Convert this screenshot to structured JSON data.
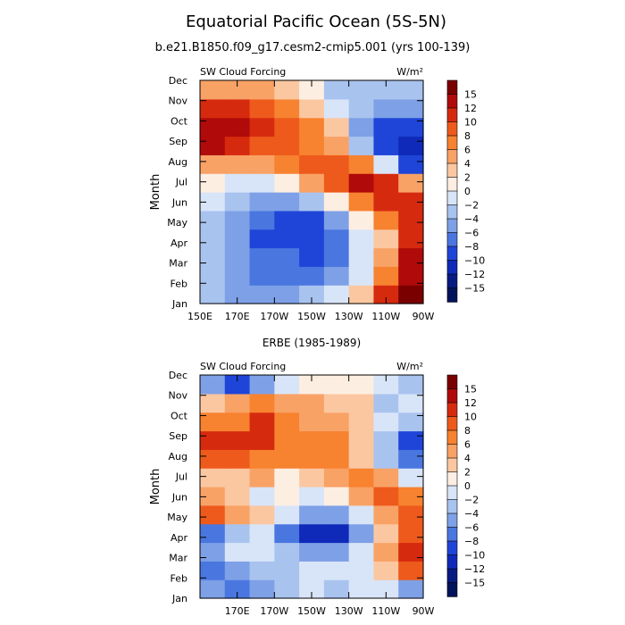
{
  "page": {
    "title": "Equatorial Pacific Ocean (5S-5N)",
    "subtitle": "b.e21.B1850.f09_g17.cesm2-cmip5.001 (yrs 100-139)"
  },
  "colorbar": {
    "labels": [
      "15",
      "12",
      "10",
      "8",
      "6",
      "4",
      "2",
      "0",
      "−2",
      "−4",
      "−6",
      "−8",
      "−10",
      "−12",
      "−15"
    ],
    "colors": [
      "#7a0000",
      "#b00a0a",
      "#d62a0f",
      "#ee5a1c",
      "#f7822f",
      "#f9a266",
      "#fbc7a1",
      "#fdeee2",
      "#d8e5f8",
      "#a9c3ef",
      "#7ea0e6",
      "#4a76e0",
      "#1f45d8",
      "#0f2ab8",
      "#071b82",
      "#03135a"
    ]
  },
  "chart_data": [
    {
      "type": "heatmap",
      "title": "",
      "left_label": "SW Cloud Forcing",
      "units": "W/m²",
      "ylabel": "Month",
      "xlabel": "",
      "x_ticks": [
        "150E",
        "170E",
        "170W",
        "150W",
        "130W",
        "110W",
        "90W"
      ],
      "x_lon": [
        150,
        170,
        190,
        210,
        230,
        250,
        270
      ],
      "xlim": [
        150,
        270
      ],
      "y_ticks": [
        "Jan",
        "Feb",
        "Mar",
        "Apr",
        "May",
        "Jun",
        "Jul",
        "Aug",
        "Sep",
        "Oct",
        "Nov",
        "Dec"
      ],
      "z_levels": [
        -15,
        -12,
        -10,
        -8,
        -6,
        -4,
        -2,
        0,
        2,
        4,
        6,
        8,
        10,
        12,
        15
      ],
      "values": [
        [
          -4,
          -6,
          -6,
          -5,
          -4,
          -2,
          2,
          10,
          15
        ],
        [
          -4,
          -6,
          -7,
          -8,
          -8,
          -5,
          -1,
          6,
          14
        ],
        [
          -3,
          -6,
          -7,
          -8,
          -9,
          -7,
          -2,
          4,
          12
        ],
        [
          -4,
          -6,
          -9,
          -10,
          -10,
          -8,
          -2,
          3,
          10
        ],
        [
          -3,
          -6,
          -8,
          -10,
          -9,
          -6,
          0,
          6,
          11
        ],
        [
          -2,
          -4,
          -5,
          -5,
          -3,
          1,
          6,
          11,
          10
        ],
        [
          1,
          -2,
          -2,
          0,
          4,
          8,
          12,
          10,
          5
        ],
        [
          5,
          4,
          5,
          6,
          8,
          8,
          6,
          -2,
          -10
        ],
        [
          12,
          11,
          9,
          8,
          7,
          4,
          -4,
          -10,
          -12
        ],
        [
          13,
          12,
          11,
          8,
          6,
          2,
          -6,
          -10,
          -10
        ],
        [
          11,
          10,
          9,
          6,
          3,
          -2,
          -4,
          -6,
          -6
        ],
        [
          5,
          4,
          4,
          3,
          1,
          -3,
          -3,
          -4,
          -3
        ]
      ]
    },
    {
      "type": "heatmap",
      "title": "ERBE (1985-1989)",
      "left_label": "SW Cloud Forcing",
      "units": "W/m²",
      "ylabel": "Month",
      "xlabel": "",
      "x_ticks": [
        "170E",
        "170W",
        "150W",
        "130W",
        "110W",
        "90W"
      ],
      "x_lon": [
        170,
        190,
        210,
        230,
        250,
        270
      ],
      "xlim": [
        150,
        270
      ],
      "y_ticks": [
        "Jan",
        "Feb",
        "Mar",
        "Apr",
        "May",
        "Jun",
        "Jul",
        "Aug",
        "Sep",
        "Oct",
        "Nov",
        "Dec"
      ],
      "z_levels": [
        -15,
        -12,
        -10,
        -8,
        -6,
        -4,
        -2,
        0,
        2,
        4,
        6,
        8,
        10,
        12,
        15
      ],
      "values": [
        [
          -6,
          -8,
          -6,
          -3,
          -2,
          -3,
          -2,
          -2,
          -5
        ],
        [
          -8,
          -6,
          -4,
          -3,
          -2,
          -2,
          -2,
          2,
          8
        ],
        [
          -6,
          -2,
          -2,
          -4,
          -6,
          -6,
          -2,
          4,
          11
        ],
        [
          -8,
          -4,
          -2,
          -8,
          -12,
          -12,
          -6,
          2,
          8
        ],
        [
          8,
          4,
          2,
          -2,
          -6,
          -6,
          -2,
          5,
          9
        ],
        [
          4,
          2,
          -1,
          0,
          -2,
          1,
          4,
          8,
          6
        ],
        [
          2,
          3,
          4,
          1,
          2,
          5,
          6,
          4,
          -2
        ],
        [
          9,
          8,
          7,
          6,
          6,
          6,
          2,
          -3,
          -8
        ],
        [
          11,
          10,
          10,
          7,
          6,
          6,
          2,
          -4,
          -10
        ],
        [
          6,
          6,
          10,
          6,
          5,
          5,
          2,
          -2,
          -4
        ],
        [
          2,
          4,
          6,
          5,
          4,
          3,
          2,
          -4,
          -2
        ],
        [
          -6,
          -10,
          -6,
          -1,
          1,
          1,
          0,
          -2,
          -4
        ]
      ]
    }
  ]
}
